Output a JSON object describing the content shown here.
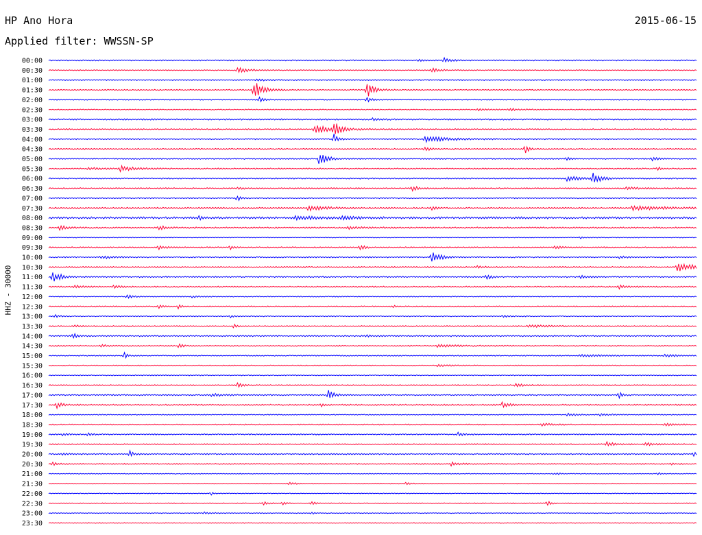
{
  "header": {
    "station": "HP Ano Hora",
    "date": "2015-06-15",
    "filter": "Applied filter: WWSSN-SP"
  },
  "chart_data": {
    "type": "line",
    "title": "HP Ano Hora",
    "subtitle": "Applied filter: WWSSN-SP",
    "ylabel": "HHZ - 30000",
    "date": "2015-06-15",
    "colors": [
      "#0000ff",
      "#ff0033"
    ],
    "rows": [
      {
        "label": "00:00",
        "noise": 0.8,
        "events": [
          {
            "x": 0.61,
            "a": 4,
            "w": 0.01
          },
          {
            "x": 0.57,
            "a": 1.5,
            "w": 0.01
          }
        ]
      },
      {
        "label": "00:30",
        "noise": 0.7,
        "events": [
          {
            "x": 0.29,
            "a": 4,
            "w": 0.016
          },
          {
            "x": 0.59,
            "a": 3.5,
            "w": 0.012
          }
        ]
      },
      {
        "label": "01:00",
        "noise": 0.7,
        "events": [
          {
            "x": 0.32,
            "a": 1.5,
            "w": 0.02
          }
        ]
      },
      {
        "label": "01:30",
        "noise": 0.8,
        "events": [
          {
            "x": 0.315,
            "a": 16,
            "w": 0.012
          },
          {
            "x": 0.49,
            "a": 14,
            "w": 0.01
          }
        ]
      },
      {
        "label": "02:00",
        "noise": 0.7,
        "events": [
          {
            "x": 0.325,
            "a": 4,
            "w": 0.008
          },
          {
            "x": 0.49,
            "a": 5,
            "w": 0.006
          }
        ]
      },
      {
        "label": "02:30",
        "noise": 0.7,
        "events": [
          {
            "x": 0.66,
            "a": 1.5,
            "w": 0.02
          },
          {
            "x": 0.71,
            "a": 1.5,
            "w": 0.02
          }
        ]
      },
      {
        "label": "03:00",
        "noise": 1.0,
        "events": [
          {
            "x": 0.5,
            "a": 2,
            "w": 0.01
          }
        ]
      },
      {
        "label": "03:30",
        "noise": 0.9,
        "events": [
          {
            "x": 0.41,
            "a": 6,
            "w": 0.03
          },
          {
            "x": 0.44,
            "a": 12,
            "w": 0.008
          }
        ]
      },
      {
        "label": "04:00",
        "noise": 0.8,
        "events": [
          {
            "x": 0.44,
            "a": 8,
            "w": 0.006
          },
          {
            "x": 0.58,
            "a": 4,
            "w": 0.04
          }
        ]
      },
      {
        "label": "04:30",
        "noise": 0.8,
        "events": [
          {
            "x": 0.58,
            "a": 3,
            "w": 0.01
          },
          {
            "x": 0.735,
            "a": 12,
            "w": 0.004
          }
        ]
      },
      {
        "label": "05:00",
        "noise": 0.9,
        "events": [
          {
            "x": 0.417,
            "a": 14,
            "w": 0.01
          },
          {
            "x": 0.798,
            "a": 4,
            "w": 0.005
          },
          {
            "x": 0.93,
            "a": 3,
            "w": 0.01
          }
        ]
      },
      {
        "label": "05:30",
        "noise": 0.9,
        "events": [
          {
            "x": 0.06,
            "a": 2,
            "w": 0.015
          },
          {
            "x": 0.11,
            "a": 4,
            "w": 0.02
          },
          {
            "x": 0.94,
            "a": 3,
            "w": 0.005
          }
        ]
      },
      {
        "label": "06:00",
        "noise": 0.9,
        "events": [
          {
            "x": 0.8,
            "a": 4,
            "w": 0.02
          },
          {
            "x": 0.84,
            "a": 8,
            "w": 0.012
          }
        ]
      },
      {
        "label": "06:30",
        "noise": 0.9,
        "events": [
          {
            "x": 0.29,
            "a": 3,
            "w": 0.006
          },
          {
            "x": 0.56,
            "a": 4,
            "w": 0.01
          },
          {
            "x": 0.89,
            "a": 2,
            "w": 0.02
          }
        ]
      },
      {
        "label": "07:00",
        "noise": 0.8,
        "events": [
          {
            "x": 0.29,
            "a": 7,
            "w": 0.005
          }
        ]
      },
      {
        "label": "07:30",
        "noise": 1.0,
        "events": [
          {
            "x": 0.4,
            "a": 4,
            "w": 0.025
          },
          {
            "x": 0.59,
            "a": 4,
            "w": 0.006
          },
          {
            "x": 0.9,
            "a": 3,
            "w": 0.05
          }
        ]
      },
      {
        "label": "08:00",
        "noise": 1.5,
        "events": [
          {
            "x": 0.23,
            "a": 4,
            "w": 0.006
          },
          {
            "x": 0.38,
            "a": 3,
            "w": 0.03
          },
          {
            "x": 0.45,
            "a": 3,
            "w": 0.02
          }
        ]
      },
      {
        "label": "08:30",
        "noise": 1.0,
        "events": [
          {
            "x": 0.015,
            "a": 4,
            "w": 0.01
          },
          {
            "x": 0.17,
            "a": 3,
            "w": 0.01
          },
          {
            "x": 0.46,
            "a": 2,
            "w": 0.02
          }
        ]
      },
      {
        "label": "09:00",
        "noise": 0.6,
        "events": [
          {
            "x": 0.82,
            "a": 1.2,
            "w": 0.01
          }
        ]
      },
      {
        "label": "09:30",
        "noise": 0.9,
        "events": [
          {
            "x": 0.17,
            "a": 3,
            "w": 0.01
          },
          {
            "x": 0.28,
            "a": 4,
            "w": 0.005
          },
          {
            "x": 0.48,
            "a": 5,
            "w": 0.006
          },
          {
            "x": 0.78,
            "a": 3,
            "w": 0.01
          }
        ]
      },
      {
        "label": "10:00",
        "noise": 0.9,
        "events": [
          {
            "x": 0.08,
            "a": 2,
            "w": 0.02
          },
          {
            "x": 0.59,
            "a": 9,
            "w": 0.012
          },
          {
            "x": 0.88,
            "a": 2,
            "w": 0.01
          }
        ]
      },
      {
        "label": "10:30",
        "noise": 0.9,
        "events": [
          {
            "x": 0.66,
            "a": 2,
            "w": 0.01
          },
          {
            "x": 0.97,
            "a": 6,
            "w": 0.03
          }
        ]
      },
      {
        "label": "11:00",
        "noise": 1.0,
        "events": [
          {
            "x": 0.005,
            "a": 12,
            "w": 0.006
          },
          {
            "x": 0.015,
            "a": 5,
            "w": 0.006
          },
          {
            "x": 0.675,
            "a": 7,
            "w": 0.005
          },
          {
            "x": 0.82,
            "a": 2,
            "w": 0.01
          }
        ]
      },
      {
        "label": "11:30",
        "noise": 0.9,
        "events": [
          {
            "x": 0.04,
            "a": 3,
            "w": 0.01
          },
          {
            "x": 0.1,
            "a": 2,
            "w": 0.01
          },
          {
            "x": 0.88,
            "a": 3,
            "w": 0.01
          }
        ]
      },
      {
        "label": "12:00",
        "noise": 0.7,
        "events": [
          {
            "x": 0.12,
            "a": 3,
            "w": 0.008
          },
          {
            "x": 0.22,
            "a": 1.5,
            "w": 0.01
          }
        ]
      },
      {
        "label": "12:30",
        "noise": 0.8,
        "events": [
          {
            "x": 0.17,
            "a": 3,
            "w": 0.005
          },
          {
            "x": 0.2,
            "a": 3,
            "w": 0.005
          },
          {
            "x": 0.53,
            "a": 2,
            "w": 0.005
          }
        ]
      },
      {
        "label": "13:00",
        "noise": 0.7,
        "events": [
          {
            "x": 0.01,
            "a": 2,
            "w": 0.008
          },
          {
            "x": 0.28,
            "a": 2,
            "w": 0.008
          },
          {
            "x": 0.7,
            "a": 1.5,
            "w": 0.01
          }
        ]
      },
      {
        "label": "13:30",
        "noise": 0.8,
        "events": [
          {
            "x": 0.04,
            "a": 2,
            "w": 0.006
          },
          {
            "x": 0.285,
            "a": 4,
            "w": 0.005
          },
          {
            "x": 0.74,
            "a": 2,
            "w": 0.03
          }
        ]
      },
      {
        "label": "14:00",
        "noise": 1.0,
        "events": [
          {
            "x": 0.037,
            "a": 5,
            "w": 0.006
          },
          {
            "x": 0.49,
            "a": 2,
            "w": 0.005
          }
        ]
      },
      {
        "label": "14:30",
        "noise": 0.8,
        "events": [
          {
            "x": 0.08,
            "a": 2,
            "w": 0.01
          },
          {
            "x": 0.2,
            "a": 5,
            "w": 0.005
          },
          {
            "x": 0.6,
            "a": 2,
            "w": 0.03
          }
        ]
      },
      {
        "label": "15:00",
        "noise": 0.8,
        "events": [
          {
            "x": 0.115,
            "a": 6,
            "w": 0.005
          },
          {
            "x": 0.82,
            "a": 2,
            "w": 0.03
          },
          {
            "x": 0.95,
            "a": 2,
            "w": 0.02
          }
        ]
      },
      {
        "label": "15:30",
        "noise": 0.7,
        "events": [
          {
            "x": 0.6,
            "a": 1.5,
            "w": 0.02
          }
        ]
      },
      {
        "label": "16:00",
        "noise": 0.7,
        "events": []
      },
      {
        "label": "16:30",
        "noise": 0.8,
        "events": [
          {
            "x": 0.29,
            "a": 4,
            "w": 0.008
          },
          {
            "x": 0.72,
            "a": 2,
            "w": 0.015
          }
        ]
      },
      {
        "label": "17:00",
        "noise": 0.9,
        "events": [
          {
            "x": 0.25,
            "a": 2,
            "w": 0.02
          },
          {
            "x": 0.43,
            "a": 9,
            "w": 0.008
          },
          {
            "x": 0.88,
            "a": 6,
            "w": 0.004
          }
        ]
      },
      {
        "label": "17:30",
        "noise": 1.0,
        "events": [
          {
            "x": 0.012,
            "a": 5,
            "w": 0.008
          },
          {
            "x": 0.42,
            "a": 3,
            "w": 0.004
          },
          {
            "x": 0.7,
            "a": 4,
            "w": 0.01
          }
        ]
      },
      {
        "label": "18:00",
        "noise": 0.7,
        "events": [
          {
            "x": 0.8,
            "a": 2,
            "w": 0.015
          },
          {
            "x": 0.85,
            "a": 2,
            "w": 0.015
          }
        ]
      },
      {
        "label": "18:30",
        "noise": 0.8,
        "events": [
          {
            "x": 0.76,
            "a": 2,
            "w": 0.02
          },
          {
            "x": 0.95,
            "a": 2,
            "w": 0.02
          }
        ]
      },
      {
        "label": "19:00",
        "noise": 0.9,
        "events": [
          {
            "x": 0.02,
            "a": 2,
            "w": 0.01
          },
          {
            "x": 0.06,
            "a": 3,
            "w": 0.005
          },
          {
            "x": 0.63,
            "a": 3,
            "w": 0.01
          }
        ]
      },
      {
        "label": "19:30",
        "noise": 0.8,
        "events": [
          {
            "x": 0.86,
            "a": 5,
            "w": 0.01
          },
          {
            "x": 0.92,
            "a": 2,
            "w": 0.02
          }
        ]
      },
      {
        "label": "20:00",
        "noise": 0.9,
        "events": [
          {
            "x": 0.02,
            "a": 2,
            "w": 0.01
          },
          {
            "x": 0.125,
            "a": 5,
            "w": 0.006
          },
          {
            "x": 0.995,
            "a": 4,
            "w": 0.004
          }
        ]
      },
      {
        "label": "20:30",
        "noise": 0.8,
        "events": [
          {
            "x": 0.005,
            "a": 4,
            "w": 0.006
          },
          {
            "x": 0.62,
            "a": 3,
            "w": 0.012
          },
          {
            "x": 0.96,
            "a": 2,
            "w": 0.005
          }
        ]
      },
      {
        "label": "21:00",
        "noise": 0.6,
        "events": [
          {
            "x": 0.78,
            "a": 1.5,
            "w": 0.01
          },
          {
            "x": 0.94,
            "a": 2,
            "w": 0.005
          }
        ]
      },
      {
        "label": "21:30",
        "noise": 0.6,
        "events": [
          {
            "x": 0.37,
            "a": 2,
            "w": 0.01
          },
          {
            "x": 0.55,
            "a": 1.5,
            "w": 0.01
          }
        ]
      },
      {
        "label": "22:00",
        "noise": 0.6,
        "events": [
          {
            "x": 0.25,
            "a": 3,
            "w": 0.004
          }
        ]
      },
      {
        "label": "22:30",
        "noise": 0.7,
        "events": [
          {
            "x": 0.33,
            "a": 3,
            "w": 0.006
          },
          {
            "x": 0.36,
            "a": 3,
            "w": 0.005
          },
          {
            "x": 0.405,
            "a": 4,
            "w": 0.005
          },
          {
            "x": 0.77,
            "a": 5,
            "w": 0.004
          }
        ]
      },
      {
        "label": "23:00",
        "noise": 0.6,
        "events": [
          {
            "x": 0.24,
            "a": 1.5,
            "w": 0.01
          },
          {
            "x": 0.405,
            "a": 2,
            "w": 0.004
          }
        ]
      },
      {
        "label": "23:30",
        "noise": 0.6,
        "events": []
      }
    ]
  }
}
